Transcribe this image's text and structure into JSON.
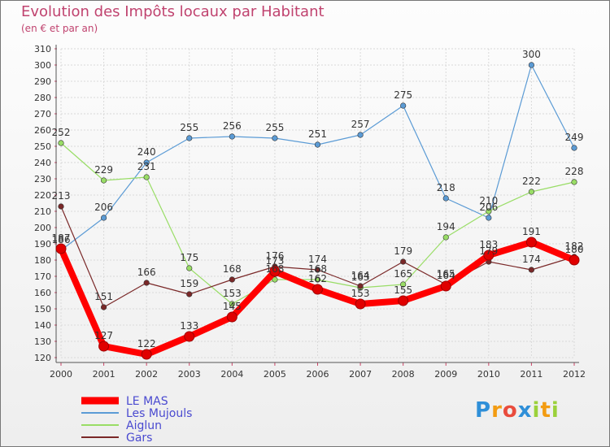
{
  "header": {
    "title": "Evolution des Impôts locaux par Habitant",
    "subtitle": "(en € et par an)"
  },
  "brand": {
    "name": "Proxiti",
    "letters": [
      "P",
      "r",
      "o",
      "x",
      "i",
      "t",
      "i"
    ],
    "colors": [
      "#2f8fd8",
      "#f39c12",
      "#e94c3d",
      "#2f8fd8",
      "#9bd13b",
      "#f39c12",
      "#9bd13b"
    ]
  },
  "chart_data": {
    "type": "line",
    "title": "Evolution des Impôts locaux par Habitant",
    "subtitle": "(en € et par an)",
    "xlabel": "",
    "ylabel": "",
    "x": [
      "2000",
      "2001",
      "2002",
      "2003",
      "2004",
      "2005",
      "2006",
      "2007",
      "2008",
      "2009",
      "2010",
      "2011",
      "2012"
    ],
    "ylim": [
      120,
      310
    ],
    "yticks": [
      120,
      130,
      140,
      150,
      160,
      170,
      180,
      190,
      200,
      210,
      220,
      230,
      240,
      250,
      260,
      270,
      280,
      290,
      300,
      310
    ],
    "grid": true,
    "legend": "bottom-left",
    "series": [
      {
        "name": "LE MAS",
        "color": "#ff0000",
        "values": [
          187,
          127,
          122,
          133,
          145,
          173,
          162,
          153,
          155,
          164,
          183,
          191,
          180
        ],
        "labels": [
          "187",
          "127",
          "122",
          "133",
          "145",
          "173",
          "162",
          "153",
          "155",
          "164",
          "183",
          "191",
          "180"
        ]
      },
      {
        "name": "Les Mujouls",
        "color": "#5b9bd5",
        "values": [
          186,
          206,
          240,
          255,
          256,
          255,
          251,
          257,
          275,
          218,
          206,
          300,
          249
        ],
        "labels": [
          "186",
          "206",
          "240",
          "255",
          "256",
          "255",
          "251",
          "257",
          "275",
          "218",
          "206",
          "300",
          "249"
        ]
      },
      {
        "name": "Aiglun",
        "color": "#99dd66",
        "values": [
          252,
          229,
          231,
          175,
          153,
          168,
          168,
          163,
          165,
          194,
          210,
          222,
          228
        ],
        "labels": [
          "252",
          "229",
          "231",
          "175",
          "153",
          "168",
          "168",
          "163",
          "165",
          "194",
          "210",
          "222",
          "228"
        ]
      },
      {
        "name": "Gars",
        "color": "#7a2828",
        "values": [
          213,
          151,
          166,
          159,
          168,
          176,
          174,
          164,
          179,
          165,
          179,
          174,
          182
        ],
        "labels": [
          "213",
          "151",
          "166",
          "159",
          "168",
          "176",
          "174",
          "164",
          "179",
          "165",
          "179",
          "174",
          "182"
        ]
      }
    ]
  }
}
